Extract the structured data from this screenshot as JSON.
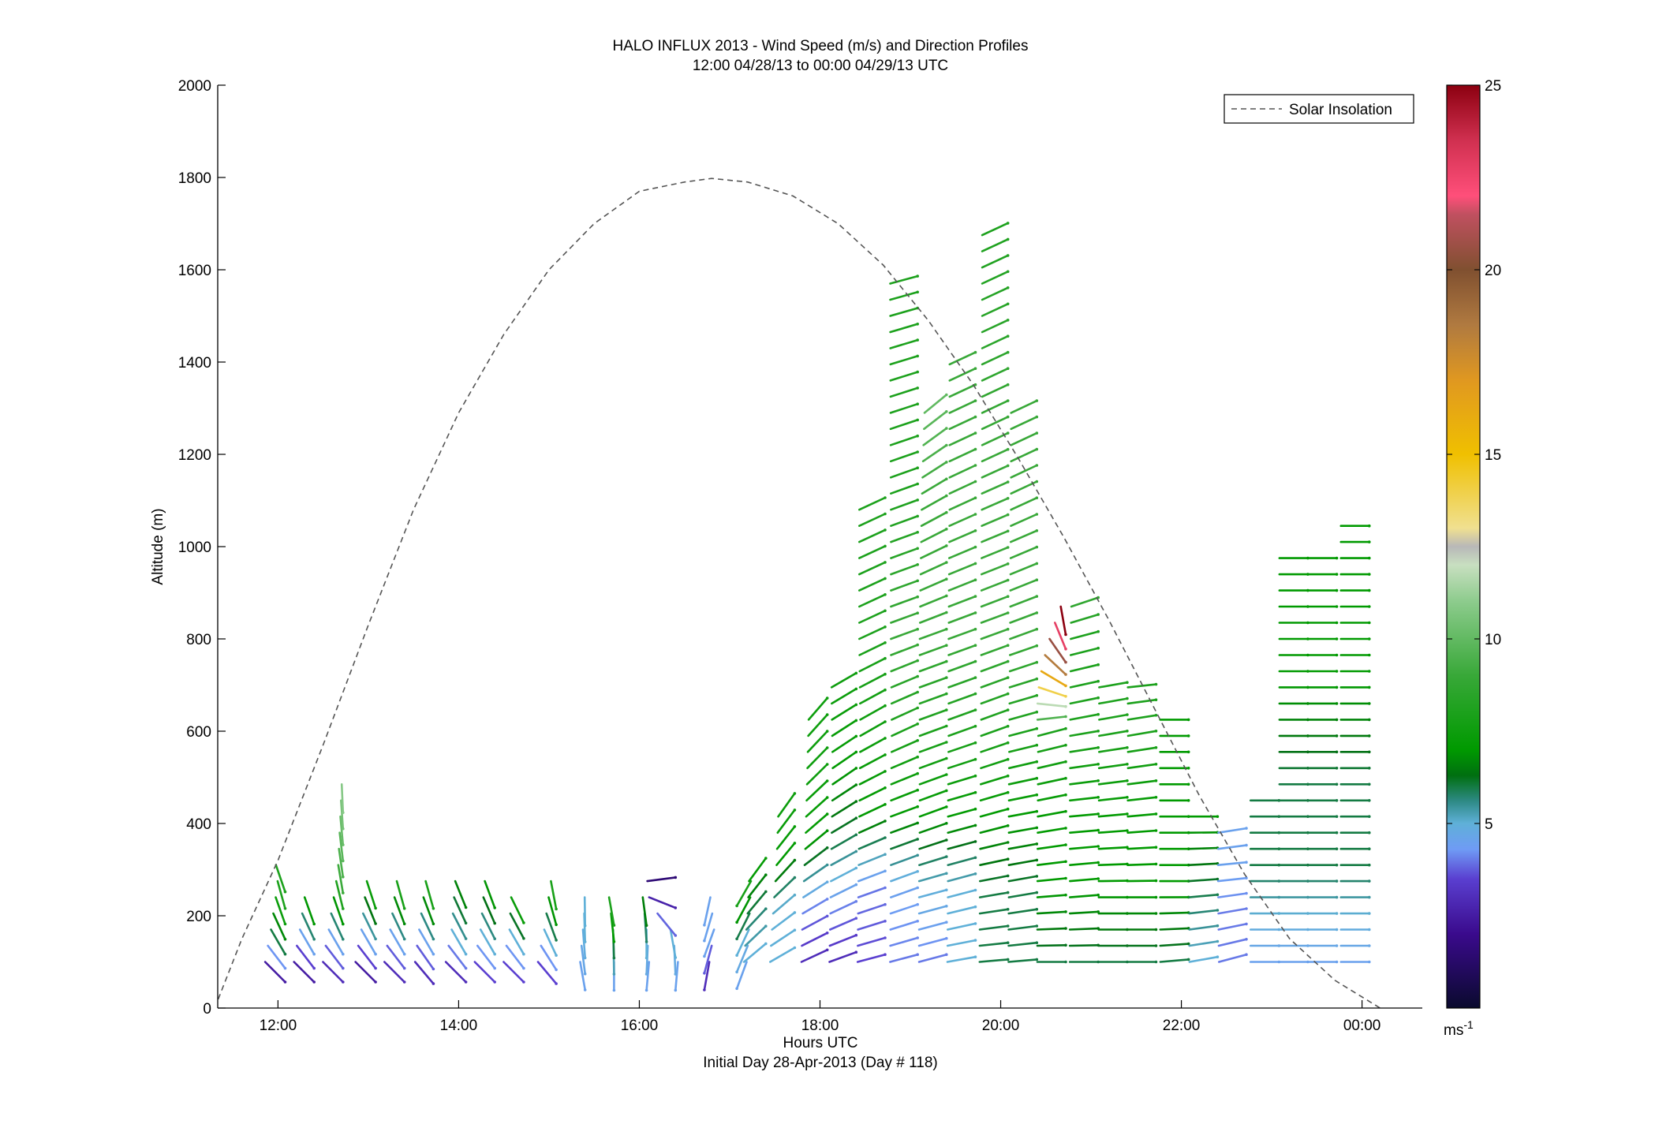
{
  "chart_data": {
    "type": "scatter",
    "title": "HALO INFLUX 2013 - Wind Speed (m/s) and Direction Profiles",
    "subtitle": "12:00 04/28/13 to 00:00 04/29/13  UTC",
    "xlabel": "Hours UTC",
    "xlabel2": "Initial Day 28-Apr-2013 (Day # 118)",
    "ylabel": "Altitude (m)",
    "xlim": [
      11.333,
      24.667
    ],
    "ylim": [
      0,
      2000
    ],
    "x_ticks": [
      12,
      14,
      16,
      18,
      20,
      22,
      24
    ],
    "x_tick_labels": [
      "12:00",
      "14:00",
      "16:00",
      "18:00",
      "20:00",
      "22:00",
      "00:00"
    ],
    "y_ticks": [
      0,
      200,
      400,
      600,
      800,
      1000,
      1200,
      1400,
      1600,
      1800,
      2000
    ],
    "y_tick_labels": [
      "0",
      "200",
      "400",
      "600",
      "800",
      "1000",
      "1200",
      "1400",
      "1600",
      "1800",
      "2000"
    ],
    "grid": false,
    "legend": {
      "placement": "top-right",
      "entries": [
        {
          "label": "Solar Insolation",
          "style": "dashed",
          "color": "#555555"
        }
      ]
    },
    "colorbar": {
      "limits": [
        0,
        25
      ],
      "ticks": [
        5,
        10,
        15,
        20,
        25
      ],
      "tick_labels": [
        "5",
        "10",
        "15",
        "20",
        "25"
      ],
      "unit": "ms",
      "unit_sup": "-1",
      "stops": [
        {
          "v": 0,
          "c": "#0a0a2e"
        },
        {
          "v": 2,
          "c": "#3a0a8c"
        },
        {
          "v": 3.5,
          "c": "#5a3fd0"
        },
        {
          "v": 4.3,
          "c": "#6f9bf5"
        },
        {
          "v": 5,
          "c": "#5fb0d8"
        },
        {
          "v": 5.6,
          "c": "#2e8a86"
        },
        {
          "v": 6.3,
          "c": "#006f10"
        },
        {
          "v": 7,
          "c": "#009a00"
        },
        {
          "v": 9,
          "c": "#38a838"
        },
        {
          "v": 11,
          "c": "#8ccb8c"
        },
        {
          "v": 12,
          "c": "#c8dfc0"
        },
        {
          "v": 12.5,
          "c": "#b8b8b8"
        },
        {
          "v": 13,
          "c": "#f0e090"
        },
        {
          "v": 15,
          "c": "#f0c000"
        },
        {
          "v": 17,
          "c": "#e09820"
        },
        {
          "v": 18.5,
          "c": "#b07a40"
        },
        {
          "v": 20,
          "c": "#805030"
        },
        {
          "v": 21.5,
          "c": "#c05060"
        },
        {
          "v": 22,
          "c": "#ff4f7a"
        },
        {
          "v": 23.5,
          "c": "#d03050"
        },
        {
          "v": 25,
          "c": "#8c0010"
        }
      ]
    },
    "solar_insolation": [
      [
        11.3,
        0
      ],
      [
        11.6,
        150
      ],
      [
        12.0,
        320
      ],
      [
        12.5,
        570
      ],
      [
        13.0,
        830
      ],
      [
        13.5,
        1080
      ],
      [
        14.0,
        1290
      ],
      [
        14.5,
        1460
      ],
      [
        15.0,
        1600
      ],
      [
        15.5,
        1700
      ],
      [
        16.0,
        1770
      ],
      [
        16.5,
        1790
      ],
      [
        16.8,
        1798
      ],
      [
        17.2,
        1790
      ],
      [
        17.7,
        1760
      ],
      [
        18.2,
        1700
      ],
      [
        18.7,
        1610
      ],
      [
        19.2,
        1490
      ],
      [
        19.7,
        1350
      ],
      [
        20.2,
        1190
      ],
      [
        20.7,
        1020
      ],
      [
        21.2,
        840
      ],
      [
        21.7,
        650
      ],
      [
        22.2,
        460
      ],
      [
        22.7,
        290
      ],
      [
        23.2,
        150
      ],
      [
        23.7,
        60
      ],
      [
        24.2,
        0
      ]
    ],
    "profile_times": [
      12.08,
      12.4,
      12.72,
      13.08,
      13.4,
      13.72,
      14.08,
      14.4,
      14.72,
      15.08,
      15.4,
      15.72,
      16.08,
      16.4,
      16.72,
      17.08,
      17.4,
      17.72,
      18.08,
      18.4,
      18.72,
      19.08,
      19.4,
      19.72,
      20.08,
      20.4,
      20.72,
      21.08,
      21.4,
      21.72,
      22.08,
      22.4,
      22.72,
      23.08,
      23.4,
      23.72,
      24.08
    ],
    "profiles": [
      {
        "t": 12.08,
        "segments": [
          [
            100,
            -45,
            2.5
          ],
          [
            170,
            -60,
            6
          ],
          [
            270,
            -75,
            8
          ],
          [
            320,
            -70,
            8
          ]
        ]
      },
      {
        "t": 12.4,
        "segments": [
          [
            100,
            -45,
            2.5
          ],
          [
            170,
            -60,
            4.5
          ],
          [
            270,
            -75,
            8
          ]
        ]
      },
      {
        "t": 12.72,
        "segments": [
          [
            100,
            -45,
            3
          ],
          [
            170,
            -60,
            4.5
          ],
          [
            300,
            -80,
            9
          ],
          [
            500,
            -88,
            11
          ]
        ]
      },
      {
        "t": 13.08,
        "segments": [
          [
            100,
            -45,
            2.5
          ],
          [
            170,
            -60,
            4.5
          ],
          [
            300,
            -75,
            8
          ]
        ]
      },
      {
        "t": 13.4,
        "segments": [
          [
            100,
            -45,
            3
          ],
          [
            170,
            -60,
            4.5
          ],
          [
            280,
            -75,
            8
          ]
        ]
      },
      {
        "t": 13.72,
        "segments": [
          [
            100,
            -50,
            3
          ],
          [
            170,
            -60,
            4.5
          ],
          [
            280,
            -75,
            8
          ]
        ]
      },
      {
        "t": 14.08,
        "segments": [
          [
            100,
            -45,
            3
          ],
          [
            170,
            -60,
            5
          ],
          [
            300,
            -70,
            7
          ]
        ]
      },
      {
        "t": 14.4,
        "segments": [
          [
            100,
            -45,
            3.5
          ],
          [
            170,
            -60,
            5
          ],
          [
            280,
            -70,
            7
          ]
        ]
      },
      {
        "t": 14.72,
        "segments": [
          [
            100,
            -45,
            3.5
          ],
          [
            170,
            -60,
            5
          ],
          [
            260,
            -65,
            8
          ]
        ]
      },
      {
        "t": 15.08,
        "segments": [
          [
            100,
            -50,
            3.5
          ],
          [
            170,
            -65,
            5
          ],
          [
            280,
            -80,
            8
          ]
        ]
      },
      {
        "t": 15.4,
        "segments": [
          [
            100,
            -80,
            4.5
          ],
          [
            200,
            -88,
            5
          ],
          [
            270,
            -90,
            5
          ]
        ]
      },
      {
        "t": 15.72,
        "segments": [
          [
            100,
            -90,
            4.5
          ],
          [
            170,
            -88,
            6
          ],
          [
            240,
            -80,
            8
          ]
        ]
      },
      {
        "t": 16.08,
        "segments": [
          [
            100,
            -95,
            4.5
          ],
          [
            170,
            -90,
            5
          ],
          [
            260,
            -80,
            7
          ]
        ]
      },
      {
        "t": 16.4,
        "segments": [
          [
            100,
            -95,
            4.5
          ],
          [
            170,
            -80,
            5
          ],
          [
            290,
            20,
            1
          ]
        ]
      },
      {
        "t": 16.72,
        "segments": [
          [
            100,
            -100,
            3
          ],
          [
            170,
            -110,
            4.5
          ],
          [
            260,
            -100,
            4.5
          ]
        ]
      },
      {
        "t": 17.08,
        "segments": [
          [
            100,
            -110,
            4.5
          ],
          [
            170,
            -115,
            5
          ],
          [
            280,
            -120,
            8
          ]
        ]
      },
      {
        "t": 17.4,
        "segments": [
          [
            100,
            40,
            5
          ],
          [
            200,
            50,
            6
          ],
          [
            300,
            55,
            7.5
          ]
        ]
      },
      {
        "t": 17.72,
        "segments": [
          [
            100,
            30,
            5
          ],
          [
            200,
            40,
            5
          ],
          [
            300,
            50,
            7
          ],
          [
            430,
            55,
            7.5
          ]
        ]
      },
      {
        "t": 18.08,
        "segments": [
          [
            100,
            25,
            3
          ],
          [
            200,
            30,
            4
          ],
          [
            350,
            40,
            7
          ],
          [
            500,
            45,
            7.5
          ],
          [
            650,
            50,
            7.5
          ]
        ]
      },
      {
        "t": 18.4,
        "segments": [
          [
            100,
            20,
            3
          ],
          [
            200,
            25,
            4
          ],
          [
            350,
            30,
            6
          ],
          [
            500,
            35,
            7
          ],
          [
            700,
            30,
            7.5
          ]
        ]
      },
      {
        "t": 18.72,
        "segments": [
          [
            100,
            15,
            3.5
          ],
          [
            250,
            20,
            4
          ],
          [
            400,
            25,
            7
          ],
          [
            600,
            30,
            7.5
          ],
          [
            800,
            25,
            8
          ],
          [
            1100,
            25,
            8
          ]
        ]
      },
      {
        "t": 19.08,
        "segments": [
          [
            100,
            15,
            4
          ],
          [
            250,
            20,
            4.5
          ],
          [
            400,
            20,
            7
          ],
          [
            600,
            25,
            8
          ],
          [
            800,
            20,
            9
          ],
          [
            1100,
            20,
            8
          ],
          [
            1600,
            15,
            8
          ]
        ]
      },
      {
        "t": 19.4,
        "segments": [
          [
            100,
            15,
            4
          ],
          [
            250,
            15,
            5
          ],
          [
            400,
            20,
            7
          ],
          [
            600,
            20,
            8
          ],
          [
            800,
            20,
            9
          ],
          [
            1100,
            30,
            9
          ],
          [
            1300,
            40,
            10
          ]
        ]
      },
      {
        "t": 19.72,
        "segments": [
          [
            100,
            10,
            5
          ],
          [
            250,
            15,
            5
          ],
          [
            400,
            15,
            7
          ],
          [
            600,
            20,
            8
          ],
          [
            800,
            20,
            9
          ],
          [
            1100,
            25,
            9
          ],
          [
            1400,
            25,
            9
          ]
        ]
      },
      {
        "t": 20.08,
        "segments": [
          [
            100,
            5,
            6
          ],
          [
            250,
            10,
            6
          ],
          [
            400,
            15,
            7
          ],
          [
            600,
            20,
            8
          ],
          [
            800,
            20,
            9
          ],
          [
            1200,
            25,
            9
          ],
          [
            1700,
            25,
            8
          ]
        ]
      },
      {
        "t": 20.4,
        "segments": [
          [
            100,
            5,
            6
          ],
          [
            250,
            10,
            6
          ],
          [
            400,
            10,
            7
          ],
          [
            600,
            15,
            8
          ],
          [
            800,
            20,
            9
          ],
          [
            1100,
            25,
            9
          ],
          [
            1300,
            25,
            9
          ]
        ]
      },
      {
        "t": 20.72,
        "segments": [
          [
            100,
            0,
            6
          ],
          [
            250,
            5,
            7
          ],
          [
            400,
            10,
            7
          ],
          [
            600,
            15,
            8
          ],
          [
            870,
            -80,
            25
          ]
        ]
      },
      {
        "t": 21.08,
        "segments": [
          [
            100,
            0,
            6
          ],
          [
            250,
            5,
            7
          ],
          [
            400,
            5,
            7
          ],
          [
            600,
            10,
            8
          ],
          [
            800,
            15,
            8
          ],
          [
            900,
            20,
            9
          ]
        ]
      },
      {
        "t": 21.4,
        "segments": [
          [
            100,
            0,
            6
          ],
          [
            250,
            0,
            7
          ],
          [
            400,
            5,
            7
          ],
          [
            600,
            10,
            8
          ],
          [
            700,
            10,
            8
          ]
        ]
      },
      {
        "t": 21.72,
        "segments": [
          [
            100,
            0,
            6
          ],
          [
            250,
            0,
            7
          ],
          [
            400,
            5,
            7
          ],
          [
            600,
            10,
            8
          ],
          [
            720,
            5,
            8
          ]
        ]
      },
      {
        "t": 22.08,
        "segments": [
          [
            100,
            5,
            6
          ],
          [
            250,
            0,
            7
          ],
          [
            400,
            0,
            7
          ],
          [
            550,
            0,
            7
          ],
          [
            630,
            0,
            7
          ]
        ]
      },
      {
        "t": 22.4,
        "segments": [
          [
            100,
            10,
            5
          ],
          [
            250,
            5,
            6
          ],
          [
            400,
            0,
            7
          ],
          [
            430,
            0,
            7
          ]
        ]
      },
      {
        "t": 22.72,
        "segments": [
          [
            100,
            15,
            4
          ],
          [
            200,
            10,
            4
          ],
          [
            300,
            5,
            4.5
          ],
          [
            400,
            10,
            4.5
          ]
        ]
      },
      {
        "t": 23.08,
        "segments": [
          [
            100,
            0,
            4.5
          ],
          [
            200,
            0,
            5
          ],
          [
            300,
            0,
            6
          ],
          [
            400,
            0,
            6
          ],
          [
            460,
            0,
            6
          ]
        ]
      },
      {
        "t": 23.4,
        "segments": [
          [
            100,
            0,
            4.5
          ],
          [
            200,
            0,
            5
          ],
          [
            300,
            0,
            6
          ],
          [
            500,
            0,
            6
          ],
          [
            700,
            0,
            7
          ],
          [
            900,
            0,
            7
          ],
          [
            1000,
            0,
            7
          ]
        ]
      },
      {
        "t": 23.72,
        "segments": [
          [
            100,
            0,
            4.5
          ],
          [
            200,
            0,
            5
          ],
          [
            300,
            0,
            6
          ],
          [
            500,
            0,
            6
          ],
          [
            700,
            0,
            7
          ],
          [
            900,
            0,
            7
          ],
          [
            1000,
            0,
            7
          ]
        ]
      },
      {
        "t": 24.08,
        "segments": [
          [
            100,
            0,
            4.5
          ],
          [
            200,
            0,
            5
          ],
          [
            300,
            0,
            6
          ],
          [
            500,
            0,
            6
          ],
          [
            700,
            0,
            7
          ],
          [
            900,
            0,
            7
          ],
          [
            1050,
            0,
            7
          ]
        ]
      }
    ]
  }
}
